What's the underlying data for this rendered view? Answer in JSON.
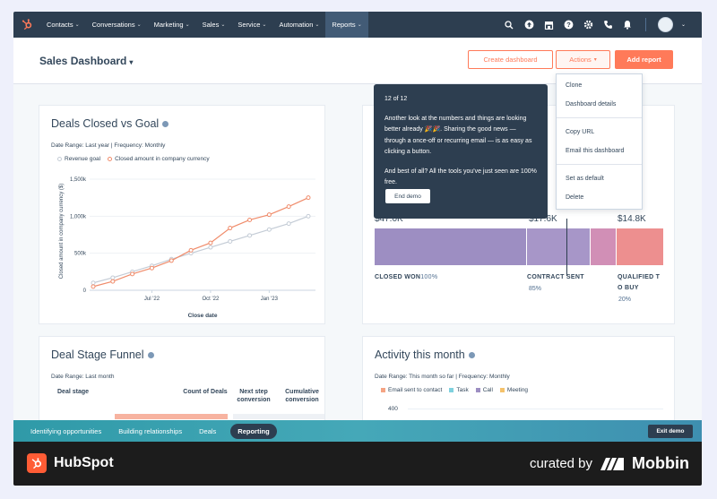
{
  "nav": {
    "items": [
      {
        "label": "Contacts"
      },
      {
        "label": "Conversations"
      },
      {
        "label": "Marketing"
      },
      {
        "label": "Sales"
      },
      {
        "label": "Service"
      },
      {
        "label": "Automation"
      },
      {
        "label": "Reports"
      }
    ],
    "icons": [
      "search-icon",
      "upgrade-icon",
      "marketplace-icon",
      "help-icon",
      "settings-icon",
      "calling-icon",
      "notifications-icon"
    ]
  },
  "header": {
    "title": "Sales Dashboard",
    "create_label": "Create dashboard",
    "actions_label": "Actions",
    "add_report_label": "Add report"
  },
  "deals_closed": {
    "title": "Deals Closed vs Goal",
    "meta": "Date Range: Last year | Frequency: Monthly",
    "legend": [
      "Revenue goal",
      "Closed amount in company currency"
    ],
    "ylabel": "Closed amount in company currency ($)",
    "xlabel": "Close date",
    "yticks": [
      "1,500k",
      "1,000k",
      "500k",
      "0"
    ],
    "xticks": [
      "Jul '22",
      "Oct '22",
      "Jan '23"
    ]
  },
  "chart_data": {
    "type": "line",
    "title": "Deals Closed vs Goal",
    "xlabel": "Close date",
    "ylabel": "Closed amount in company currency ($)",
    "ylim": [
      0,
      1500000
    ],
    "x": [
      "Apr '22",
      "May '22",
      "Jun '22",
      "Jul '22",
      "Aug '22",
      "Sep '22",
      "Oct '22",
      "Nov '22",
      "Dec '22",
      "Jan '23",
      "Feb '23",
      "Mar '23"
    ],
    "series": [
      {
        "name": "Revenue goal",
        "color": "#c4ccd6",
        "values": [
          100000,
          170000,
          250000,
          330000,
          420000,
          500000,
          580000,
          660000,
          740000,
          820000,
          900000,
          1000000
        ]
      },
      {
        "name": "Closed amount in company currency",
        "color": "#f08c6b",
        "values": [
          50000,
          120000,
          220000,
          300000,
          400000,
          540000,
          640000,
          840000,
          950000,
          1020000,
          1130000,
          1250000
        ]
      }
    ],
    "grid": true
  },
  "stage_bar": {
    "values": [
      "$47.0K",
      "$17.6K",
      "$14.8K"
    ],
    "labels": [
      "CLOSED WON",
      "CONTRACT SENT",
      "QUALIFIED T O BUY"
    ],
    "label_lines": [
      "QUALIFIED T",
      "O BUY"
    ],
    "pcts": [
      "100%",
      "85%",
      "20%"
    ]
  },
  "tooltip": {
    "step": "12 of 12",
    "p1": "Another look at the numbers and things are looking better already 🎉🎉. Sharing the good news — through a once-off or recurring email — is as easy as clicking a button.",
    "p2": "And best of all? All the tools you've just seen are 100% free.",
    "button": "End demo"
  },
  "actions_menu": [
    "Clone",
    "Dashboard details",
    "Copy URL",
    "Email this dashboard",
    "Set as default",
    "Delete"
  ],
  "funnel": {
    "title": "Deal Stage Funnel",
    "meta": "Date Range: Last month",
    "cols": [
      "Deal stage",
      "Count of Deals",
      "Next step conversion",
      "Cumulative conversion"
    ]
  },
  "activity": {
    "title": "Activity this month",
    "meta": "Date Range: This month so far | Frequency: Monthly",
    "legend": [
      {
        "label": "Email sent to contact",
        "color": "#f5a483"
      },
      {
        "label": "Task",
        "color": "#7fd1de"
      },
      {
        "label": "Call",
        "color": "#9d8ec2"
      },
      {
        "label": "Meeting",
        "color": "#f5c26b"
      }
    ],
    "ytick": "400"
  },
  "demo_bar": {
    "steps": [
      "Identifying opportunities",
      "Building relationships",
      "Deals",
      "Reporting"
    ],
    "exit": "Exit demo"
  },
  "footer": {
    "brand": "HubSpot",
    "curated": "curated by",
    "mobbin": "Mobbin"
  }
}
